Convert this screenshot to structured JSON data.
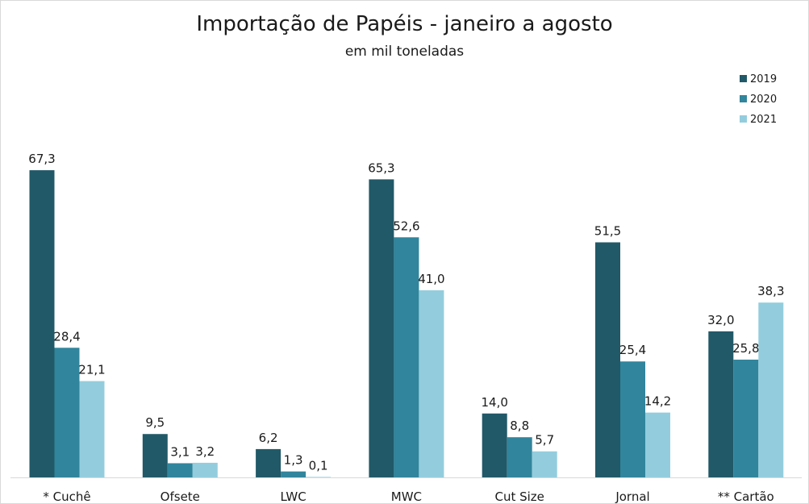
{
  "chart_data": {
    "type": "bar",
    "title": "Importação de Papéis - janeiro a agosto",
    "subtitle": "em mil toneladas",
    "categories": [
      "* Cuchê",
      "Ofsete",
      "LWC",
      "MWC",
      "Cut Size",
      "Jornal",
      "** Cartão"
    ],
    "series": [
      {
        "name": "2019",
        "color": "#215968",
        "values": [
          67.3,
          9.5,
          6.2,
          65.3,
          14.0,
          51.5,
          32.0
        ],
        "labels": [
          "67,3",
          "9,5",
          "6,2",
          "65,3",
          "14,0",
          "51,5",
          "32,0"
        ]
      },
      {
        "name": "2020",
        "color": "#31859c",
        "values": [
          28.4,
          3.1,
          1.3,
          52.6,
          8.8,
          25.4,
          25.8
        ],
        "labels": [
          "28,4",
          "3,1",
          "1,3",
          "52,6",
          "8,8",
          "25,4",
          "25,8"
        ]
      },
      {
        "name": "2021",
        "color": "#93cddd",
        "values": [
          21.1,
          3.2,
          0.1,
          41.0,
          5.7,
          14.2,
          38.3
        ],
        "labels": [
          "21,1",
          "3,2",
          "0,1",
          "41,0",
          "5,7",
          "14,2",
          "38,3"
        ]
      }
    ],
    "ylim": [
      0,
      75
    ],
    "grid": false,
    "legend": "top-right",
    "xlabel": "",
    "ylabel": ""
  }
}
